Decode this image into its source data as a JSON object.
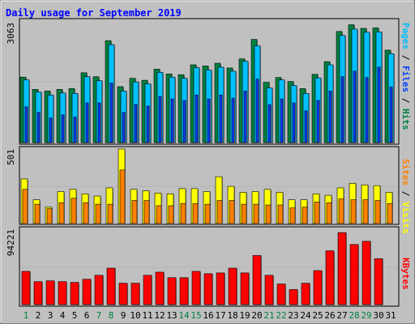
{
  "chart_data": {
    "type": "bar",
    "title": "Daily usage for September 2019",
    "categories": [
      "1",
      "2",
      "3",
      "4",
      "5",
      "6",
      "7",
      "8",
      "9",
      "10",
      "11",
      "12",
      "13",
      "14",
      "15",
      "16",
      "17",
      "18",
      "19",
      "20",
      "21",
      "22",
      "23",
      "24",
      "25",
      "26",
      "27",
      "28",
      "29",
      "30",
      "31"
    ],
    "weekend_days": [
      "1",
      "7",
      "8",
      "14",
      "15",
      "21",
      "22",
      "28",
      "29"
    ],
    "panels": [
      {
        "id": "hits_files_pages",
        "max_label": "3063",
        "ymax": 3063,
        "right_label_parts": [
          "Pages",
          " / ",
          "Files",
          " / ",
          "Hits"
        ],
        "series": [
          {
            "name": "Hits",
            "color": "#008040",
            "values": [
              1650,
              1340,
              1300,
              1340,
              1360,
              1760,
              1660,
              2570,
              1410,
              1620,
              1570,
              1850,
              1730,
              1710,
              1960,
              1930,
              2000,
              1880,
              2110,
              2600,
              1520,
              1640,
              1540,
              1360,
              1720,
              2040,
              2800,
              2970,
              2880,
              2890,
              2330
            ]
          },
          {
            "name": "Files",
            "color": "#00c0ff",
            "values": [
              1580,
              1270,
              1200,
              1250,
              1240,
              1660,
              1560,
              2470,
              1300,
              1530,
              1480,
              1770,
              1650,
              1620,
              1890,
              1830,
              1900,
              1800,
              2050,
              2440,
              1380,
              1580,
              1440,
              1240,
              1630,
              1960,
              2700,
              2860,
              2780,
              2790,
              2240
            ]
          },
          {
            "name": "Pages",
            "color": "#0040ff",
            "values": [
              900,
              760,
              620,
              700,
              640,
              1000,
              1000,
              1500,
              760,
              960,
              920,
              1160,
              1100,
              1060,
              1200,
              1100,
              1200,
              1120,
              1300,
              1600,
              960,
              1100,
              1000,
              800,
              1060,
              1300,
              1660,
              1800,
              1640,
              1900,
              1400
            ]
          }
        ]
      },
      {
        "id": "visits_sites",
        "max_label": "501",
        "ymax": 501,
        "right_label_parts": [
          "Sites",
          " / ",
          "Visits"
        ],
        "series": [
          {
            "name": "Visits",
            "color": "#ffff00",
            "values": [
              300,
              160,
              110,
              215,
              230,
              200,
              185,
              240,
              501,
              230,
              220,
              205,
              200,
              235,
              235,
              215,
              315,
              250,
              210,
              215,
              230,
              210,
              160,
              160,
              200,
              190,
              240,
              270,
              260,
              255,
              210
            ]
          },
          {
            "name": "Sites",
            "color": "#ff8000",
            "values": [
              230,
              130,
              100,
              140,
              170,
              140,
              130,
              130,
              360,
              155,
              155,
              120,
              120,
              135,
              135,
              130,
              155,
              155,
              130,
              130,
              125,
              125,
              105,
              110,
              145,
              140,
              165,
              160,
              160,
              155,
              135
            ]
          }
        ]
      },
      {
        "id": "kbytes",
        "max_label": "94221",
        "ymax": 94221,
        "right_label_parts": [
          "KBytes"
        ],
        "series": [
          {
            "name": "KBytes",
            "color": "#ff0000",
            "values": [
              42000,
              29000,
              30000,
              29000,
              28000,
              32000,
              37000,
              46000,
              27000,
              27000,
              37000,
              41000,
              34000,
              34000,
              42000,
              39000,
              40000,
              46000,
              40000,
              62000,
              37000,
              26000,
              19000,
              27000,
              43000,
              68000,
              91000,
              76000,
              80000,
              58000,
              0
            ]
          }
        ]
      }
    ]
  }
}
